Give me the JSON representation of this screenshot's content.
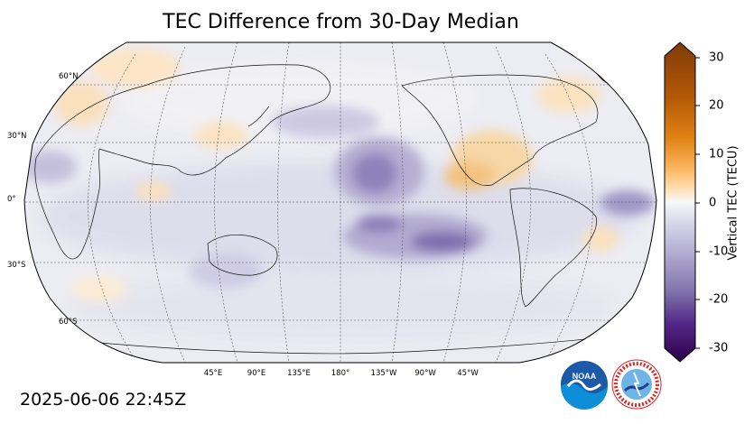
{
  "title": "TEC Difference from 30-Day Median",
  "timestamp": "2025-06-06 22:45Z",
  "colorbar": {
    "label": "Vertical TEC (TECU)",
    "ticks": [
      "30",
      "20",
      "10",
      "0",
      "-10",
      "-20",
      "-30"
    ],
    "range": [
      -30,
      30
    ],
    "negative_color": "#3b0f6f",
    "positive_color": "#7f3b08"
  },
  "map": {
    "projection": "Robinson",
    "central_longitude": 180,
    "lat_labels": [
      "60°N",
      "30°N",
      "0°",
      "30°S",
      "60°S"
    ],
    "lon_labels": [
      "45°E",
      "90°E",
      "135°E",
      "180°",
      "135°W",
      "90°W",
      "45°W"
    ]
  },
  "logos": {
    "noaa": "NOAA",
    "nws": "NATIONAL WEATHER SERVICE"
  }
}
